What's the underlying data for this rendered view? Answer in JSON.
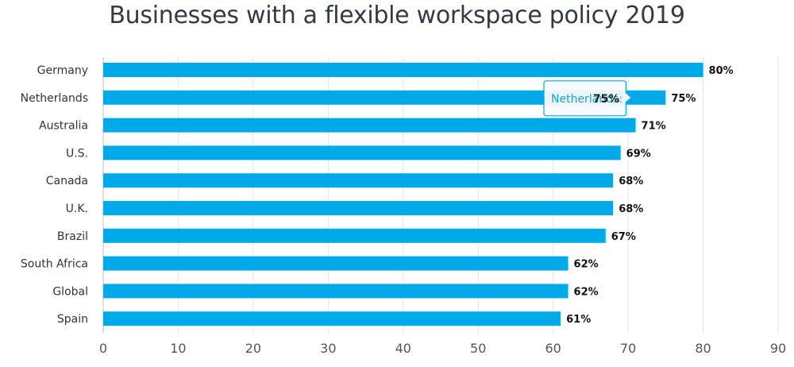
{
  "chart_data": {
    "type": "bar",
    "orientation": "horizontal",
    "title": "Businesses with a flexible workspace policy 2019",
    "categories": [
      "Germany",
      "Netherlands",
      "Australia",
      "U.S.",
      "Canada",
      "U.K.",
      "Brazil",
      "South Africa",
      "Global",
      "Spain"
    ],
    "values": [
      80,
      75,
      71,
      69,
      68,
      68,
      67,
      62,
      62,
      61
    ],
    "data_labels": [
      "80%",
      "75%",
      "71%",
      "69%",
      "68%",
      "68%",
      "67%",
      "62%",
      "62%",
      "61%"
    ],
    "xlim": [
      0,
      90
    ],
    "x_ticks": [
      "0",
      "10",
      "20",
      "30",
      "40",
      "50",
      "60",
      "70",
      "80",
      "90"
    ],
    "xlabel": "",
    "ylabel": "",
    "bar_color": "#00a9e8",
    "tooltip": {
      "category": "Netherlands",
      "label": "Netherlands:",
      "value": "75%"
    }
  }
}
